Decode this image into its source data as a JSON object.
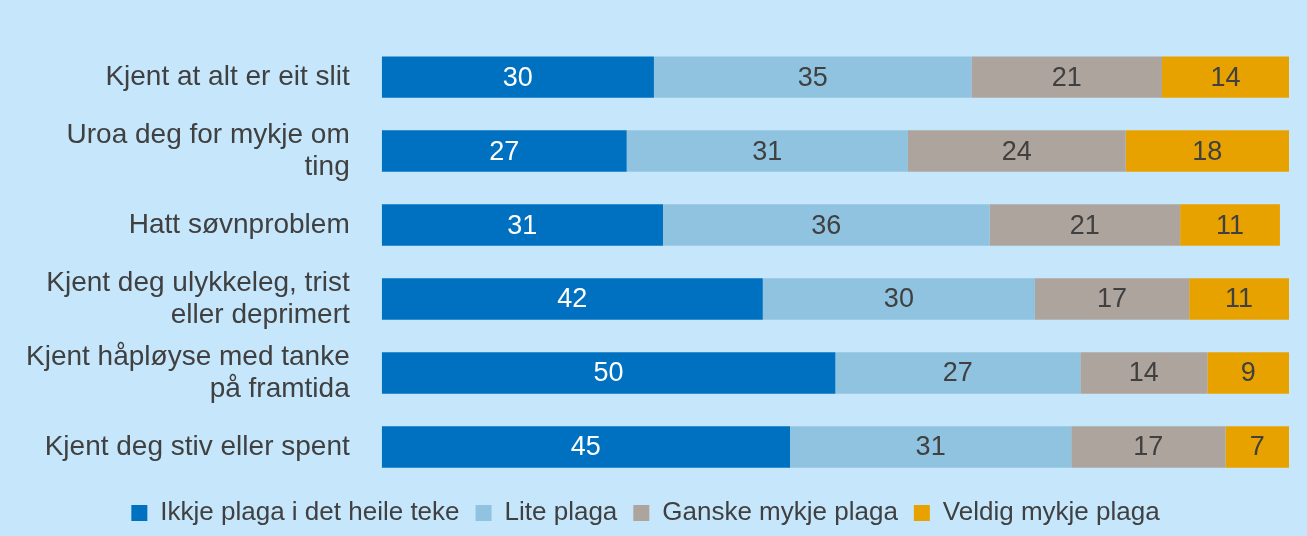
{
  "chart_data": {
    "type": "bar",
    "orientation": "horizontal",
    "stacked": true,
    "data_labels": true,
    "grid": false,
    "legend": "bottom",
    "tick_labels": "y",
    "categories": [
      "Kjent at alt er eit slit",
      "Uroa deg for mykje om ting",
      "Hatt søvnproblem",
      "Kjent deg ulykkeleg, trist eller deprimert",
      "Kjent håpløyse med tanke på framtida",
      "Kjent deg stiv eller spent"
    ],
    "xlim": [
      0,
      100
    ],
    "series": [
      {
        "name": "Ikkje plaga i det heile teke",
        "color": "#0070c0",
        "values": [
          30,
          27,
          31,
          42,
          50,
          45
        ]
      },
      {
        "name": "Lite plaga",
        "color": "#8fc3e0",
        "values": [
          35,
          31,
          36,
          30,
          27,
          31
        ]
      },
      {
        "name": "Ganske mykje plaga",
        "color": "#aea49e",
        "values": [
          21,
          24,
          21,
          17,
          14,
          17
        ]
      },
      {
        "name": "Veldig mykje plaga",
        "color": "#e8a200",
        "values": [
          14,
          18,
          11,
          11,
          9,
          7
        ]
      }
    ]
  }
}
